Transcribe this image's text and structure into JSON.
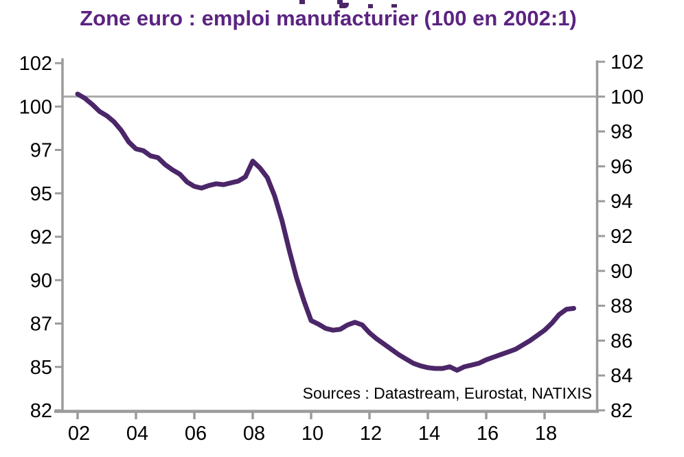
{
  "title": "Zone euro : emploi manufacturier (100 en 2002:1)",
  "source_note": "Sources : Datastream, Eurostat, NATIXIS",
  "colors": {
    "line": "#4B2668",
    "title": "#5B2382",
    "axis": "#9B9B9B",
    "gridline": "#A8A8A8",
    "label": "#000000"
  },
  "chart_data": {
    "type": "line",
    "title": "Zone euro : emploi manufacturier (100 en 2002:1)",
    "xlabel": "",
    "ylabel": "",
    "annotation": "Sources : Datastream, Eurostat, NATIXIS",
    "grid": "single horizontal gridline at 100",
    "gridline_value": 100,
    "legend_position": "none",
    "xlim": [
      2002,
      2019.8
    ],
    "ylim": [
      82,
      102
    ],
    "x_axis": {
      "labels": [
        "02",
        "04",
        "06",
        "08",
        "10",
        "12",
        "14",
        "16",
        "18"
      ],
      "tick_values": [
        2002,
        2004,
        2006,
        2008,
        2010,
        2012,
        2014,
        2016,
        2018
      ]
    },
    "left_axis": {
      "labels": [
        "102",
        "100",
        "97",
        "95",
        "92",
        "90",
        "87",
        "85",
        "82"
      ],
      "tick_values": [
        102,
        99.5,
        97,
        94.5,
        92,
        89.5,
        87,
        84.5,
        82
      ]
    },
    "right_axis": {
      "labels": [
        "102",
        "100",
        "98",
        "96",
        "94",
        "92",
        "90",
        "88",
        "86",
        "84",
        "82"
      ],
      "tick_values": [
        102,
        100,
        98,
        96,
        94,
        92,
        90,
        88,
        86,
        84,
        82
      ]
    },
    "series": [
      {
        "name": "Zone euro : emploi manufacturier (100 en 2002:1)",
        "x": [
          2002.0,
          2002.25,
          2002.5,
          2002.75,
          2003.0,
          2003.25,
          2003.5,
          2003.75,
          2004.0,
          2004.25,
          2004.5,
          2004.75,
          2005.0,
          2005.25,
          2005.5,
          2005.75,
          2006.0,
          2006.25,
          2006.5,
          2006.75,
          2007.0,
          2007.25,
          2007.5,
          2007.75,
          2008.0,
          2008.25,
          2008.5,
          2008.75,
          2009.0,
          2009.25,
          2009.5,
          2009.75,
          2010.0,
          2010.25,
          2010.5,
          2010.75,
          2011.0,
          2011.25,
          2011.5,
          2011.75,
          2012.0,
          2012.25,
          2012.5,
          2012.75,
          2013.0,
          2013.25,
          2013.5,
          2013.75,
          2014.0,
          2014.25,
          2014.5,
          2014.75,
          2015.0,
          2015.25,
          2015.5,
          2015.75,
          2016.0,
          2016.25,
          2016.5,
          2016.75,
          2017.0,
          2017.25,
          2017.5,
          2017.75,
          2018.0,
          2018.25,
          2018.5,
          2018.75,
          2019.0
        ],
        "values": [
          100.15,
          99.9,
          99.55,
          99.15,
          98.9,
          98.55,
          98.05,
          97.4,
          97.0,
          96.9,
          96.6,
          96.5,
          96.1,
          95.8,
          95.55,
          95.1,
          94.85,
          94.75,
          94.9,
          95.0,
          94.95,
          95.05,
          95.15,
          95.4,
          96.3,
          95.9,
          95.35,
          94.3,
          92.9,
          91.2,
          89.6,
          88.3,
          87.15,
          86.95,
          86.7,
          86.6,
          86.65,
          86.9,
          87.05,
          86.9,
          86.45,
          86.1,
          85.8,
          85.5,
          85.2,
          84.95,
          84.7,
          84.55,
          84.45,
          84.4,
          84.4,
          84.5,
          84.3,
          84.5,
          84.6,
          84.7,
          84.9,
          85.05,
          85.2,
          85.35,
          85.5,
          85.75,
          86.0,
          86.3,
          86.6,
          87.0,
          87.5,
          87.8,
          87.85
        ]
      }
    ]
  }
}
